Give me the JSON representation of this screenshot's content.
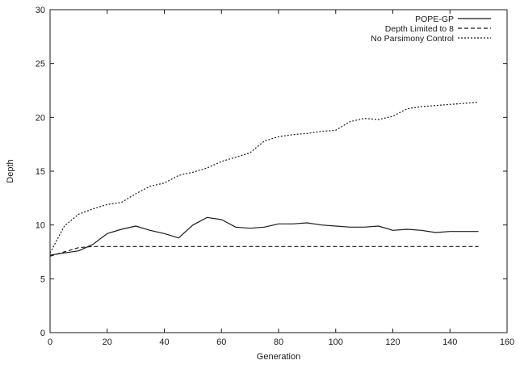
{
  "chart_data": {
    "type": "line",
    "title": "",
    "xlabel": "Generation",
    "ylabel": "Depth",
    "xlim": [
      0,
      160
    ],
    "ylim": [
      0,
      30
    ],
    "xticks": [
      "0",
      "20",
      "40",
      "60",
      "80",
      "100",
      "120",
      "140",
      "160"
    ],
    "yticks": [
      "0",
      "5",
      "10",
      "15",
      "20",
      "25",
      "30"
    ],
    "grid": false,
    "legend_position": "top-right",
    "series": [
      {
        "name": "POPE-GP",
        "style": "solid",
        "x": [
          0,
          5,
          10,
          15,
          20,
          25,
          30,
          35,
          40,
          45,
          50,
          55,
          60,
          65,
          70,
          75,
          80,
          85,
          90,
          95,
          100,
          105,
          110,
          115,
          120,
          125,
          130,
          135,
          140,
          145,
          150
        ],
        "y": [
          7.2,
          7.4,
          7.6,
          8.2,
          9.2,
          9.6,
          9.9,
          9.5,
          9.2,
          8.8,
          10.0,
          10.7,
          10.5,
          9.8,
          9.7,
          9.8,
          10.1,
          10.1,
          10.2,
          10.0,
          9.9,
          9.8,
          9.8,
          9.9,
          9.5,
          9.6,
          9.5,
          9.3,
          9.4,
          9.4,
          9.4
        ]
      },
      {
        "name": "Depth Limited to 8",
        "style": "dashed",
        "x": [
          0,
          5,
          10,
          15,
          20,
          25,
          30,
          35,
          40,
          45,
          50,
          55,
          60,
          65,
          70,
          75,
          80,
          85,
          90,
          95,
          100,
          105,
          110,
          115,
          120,
          125,
          130,
          135,
          140,
          145,
          150
        ],
        "y": [
          7.1,
          7.5,
          7.9,
          8.0,
          8.0,
          8.0,
          8.0,
          8.0,
          8.0,
          8.0,
          8.0,
          8.0,
          8.0,
          8.0,
          8.0,
          8.0,
          8.0,
          8.0,
          8.0,
          8.0,
          8.0,
          8.0,
          8.0,
          8.0,
          8.0,
          8.0,
          8.0,
          8.0,
          8.0,
          8.0,
          8.0
        ]
      },
      {
        "name": "No Parsimony Control",
        "style": "dotted",
        "x": [
          0,
          5,
          10,
          15,
          20,
          25,
          30,
          35,
          40,
          45,
          50,
          55,
          60,
          65,
          70,
          75,
          80,
          85,
          90,
          95,
          100,
          105,
          110,
          115,
          120,
          125,
          130,
          135,
          140,
          145,
          150
        ],
        "y": [
          7.4,
          9.9,
          11.0,
          11.5,
          11.9,
          12.1,
          12.9,
          13.6,
          13.9,
          14.6,
          14.9,
          15.3,
          15.9,
          16.3,
          16.7,
          17.8,
          18.2,
          18.4,
          18.5,
          18.7,
          18.8,
          19.6,
          19.9,
          19.8,
          20.1,
          20.8,
          21.0,
          21.1,
          21.2,
          21.3,
          21.4
        ]
      }
    ]
  }
}
